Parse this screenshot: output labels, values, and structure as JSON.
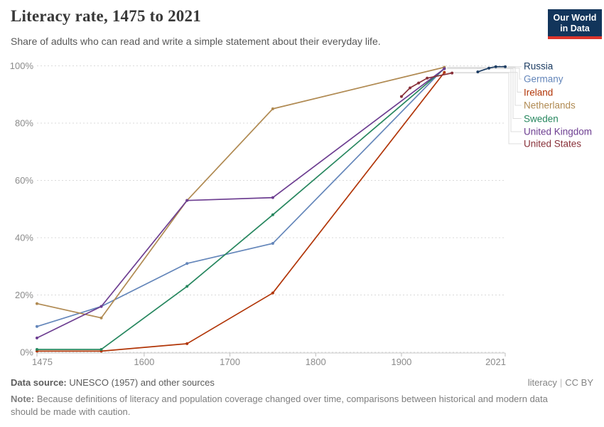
{
  "header": {
    "title": "Literacy rate, 1475 to 2021",
    "subtitle": "Share of adults who can read and write a simple statement about their everyday life.",
    "logo": {
      "line1": "Our World",
      "line2": "in Data"
    }
  },
  "chart_data": {
    "type": "line",
    "title": "Literacy rate, 1475 to 2021",
    "xlabel": "",
    "ylabel": "",
    "xlim": [
      1475,
      2021
    ],
    "ylim": [
      0,
      100
    ],
    "x_ticks": [
      1475,
      1600,
      1700,
      1800,
      1900,
      2021
    ],
    "y_ticks": [
      0,
      20,
      40,
      60,
      80,
      100
    ],
    "y_tick_suffix": "%",
    "grid": "dashed-horizontal",
    "legend_position": "right",
    "series": [
      {
        "name": "Russia",
        "color": "#1d3d63",
        "points": [
          [
            1989,
            97.9
          ],
          [
            2002,
            99.2
          ],
          [
            2010,
            99.7
          ],
          [
            2021,
            99.7
          ]
        ]
      },
      {
        "name": "Germany",
        "color": "#6486ba",
        "points": [
          [
            1475,
            9
          ],
          [
            1550,
            16
          ],
          [
            1650,
            31
          ],
          [
            1750,
            38
          ],
          [
            1950,
            99.2
          ]
        ]
      },
      {
        "name": "Ireland",
        "color": "#b13507",
        "points": [
          [
            1475,
            0.4
          ],
          [
            1550,
            0.4
          ],
          [
            1650,
            3
          ],
          [
            1750,
            20.7
          ],
          [
            1950,
            97.7
          ]
        ]
      },
      {
        "name": "Netherlands",
        "color": "#b08a52",
        "points": [
          [
            1475,
            17
          ],
          [
            1550,
            12
          ],
          [
            1650,
            53
          ],
          [
            1750,
            85
          ],
          [
            1950,
            99.5
          ]
        ]
      },
      {
        "name": "Sweden",
        "color": "#27875f",
        "points": [
          [
            1475,
            1
          ],
          [
            1550,
            1
          ],
          [
            1650,
            23
          ],
          [
            1750,
            48
          ],
          [
            1950,
            99
          ]
        ]
      },
      {
        "name": "United Kingdom",
        "color": "#6d3e91",
        "points": [
          [
            1475,
            5
          ],
          [
            1550,
            16
          ],
          [
            1650,
            53
          ],
          [
            1750,
            54
          ],
          [
            1950,
            99
          ]
        ]
      },
      {
        "name": "United States",
        "color": "#883039",
        "points": [
          [
            1900,
            89.3
          ],
          [
            1910,
            92.3
          ],
          [
            1920,
            94
          ],
          [
            1930,
            95.7
          ],
          [
            1959,
            97.5
          ]
        ]
      }
    ]
  },
  "footer": {
    "source_label": "Data source:",
    "source_text": " UNESCO (1957) and other sources",
    "license_name": "literacy",
    "license_separator": "|",
    "license_badge": "CC BY",
    "note_label": "Note:",
    "note_text": " Because definitions of literacy and population coverage changed over time, comparisons between historical and modern data should be made with caution."
  }
}
